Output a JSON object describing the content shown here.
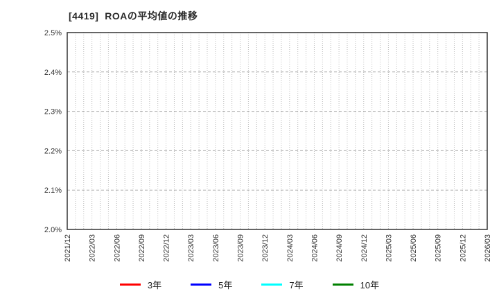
{
  "chart_data": {
    "type": "line",
    "title": "[4419]  ROAの平均値の推移",
    "xlabel": "",
    "ylabel": "",
    "ylim": [
      2.0,
      2.5
    ],
    "y_tick_labels": [
      "2.0%",
      "2.1%",
      "2.2%",
      "2.3%",
      "2.4%",
      "2.5%"
    ],
    "x_tick_labels": [
      "2021/12",
      "2022/03",
      "2022/06",
      "2022/09",
      "2022/12",
      "2023/03",
      "2023/06",
      "2023/09",
      "2023/12",
      "2024/03",
      "2024/06",
      "2024/09",
      "2024/12",
      "2025/03",
      "2025/06",
      "2025/09",
      "2025/12",
      "2026/03"
    ],
    "x_months_total": 51,
    "x_months_per_label": 3,
    "grid": true,
    "legend_position": "bottom",
    "series": [
      {
        "name": "3年",
        "color": "#ff0000",
        "values": []
      },
      {
        "name": "5年",
        "color": "#0000ff",
        "values": []
      },
      {
        "name": "7年",
        "color": "#00ffff",
        "values": []
      },
      {
        "name": "10年",
        "color": "#008000",
        "values": []
      }
    ]
  }
}
